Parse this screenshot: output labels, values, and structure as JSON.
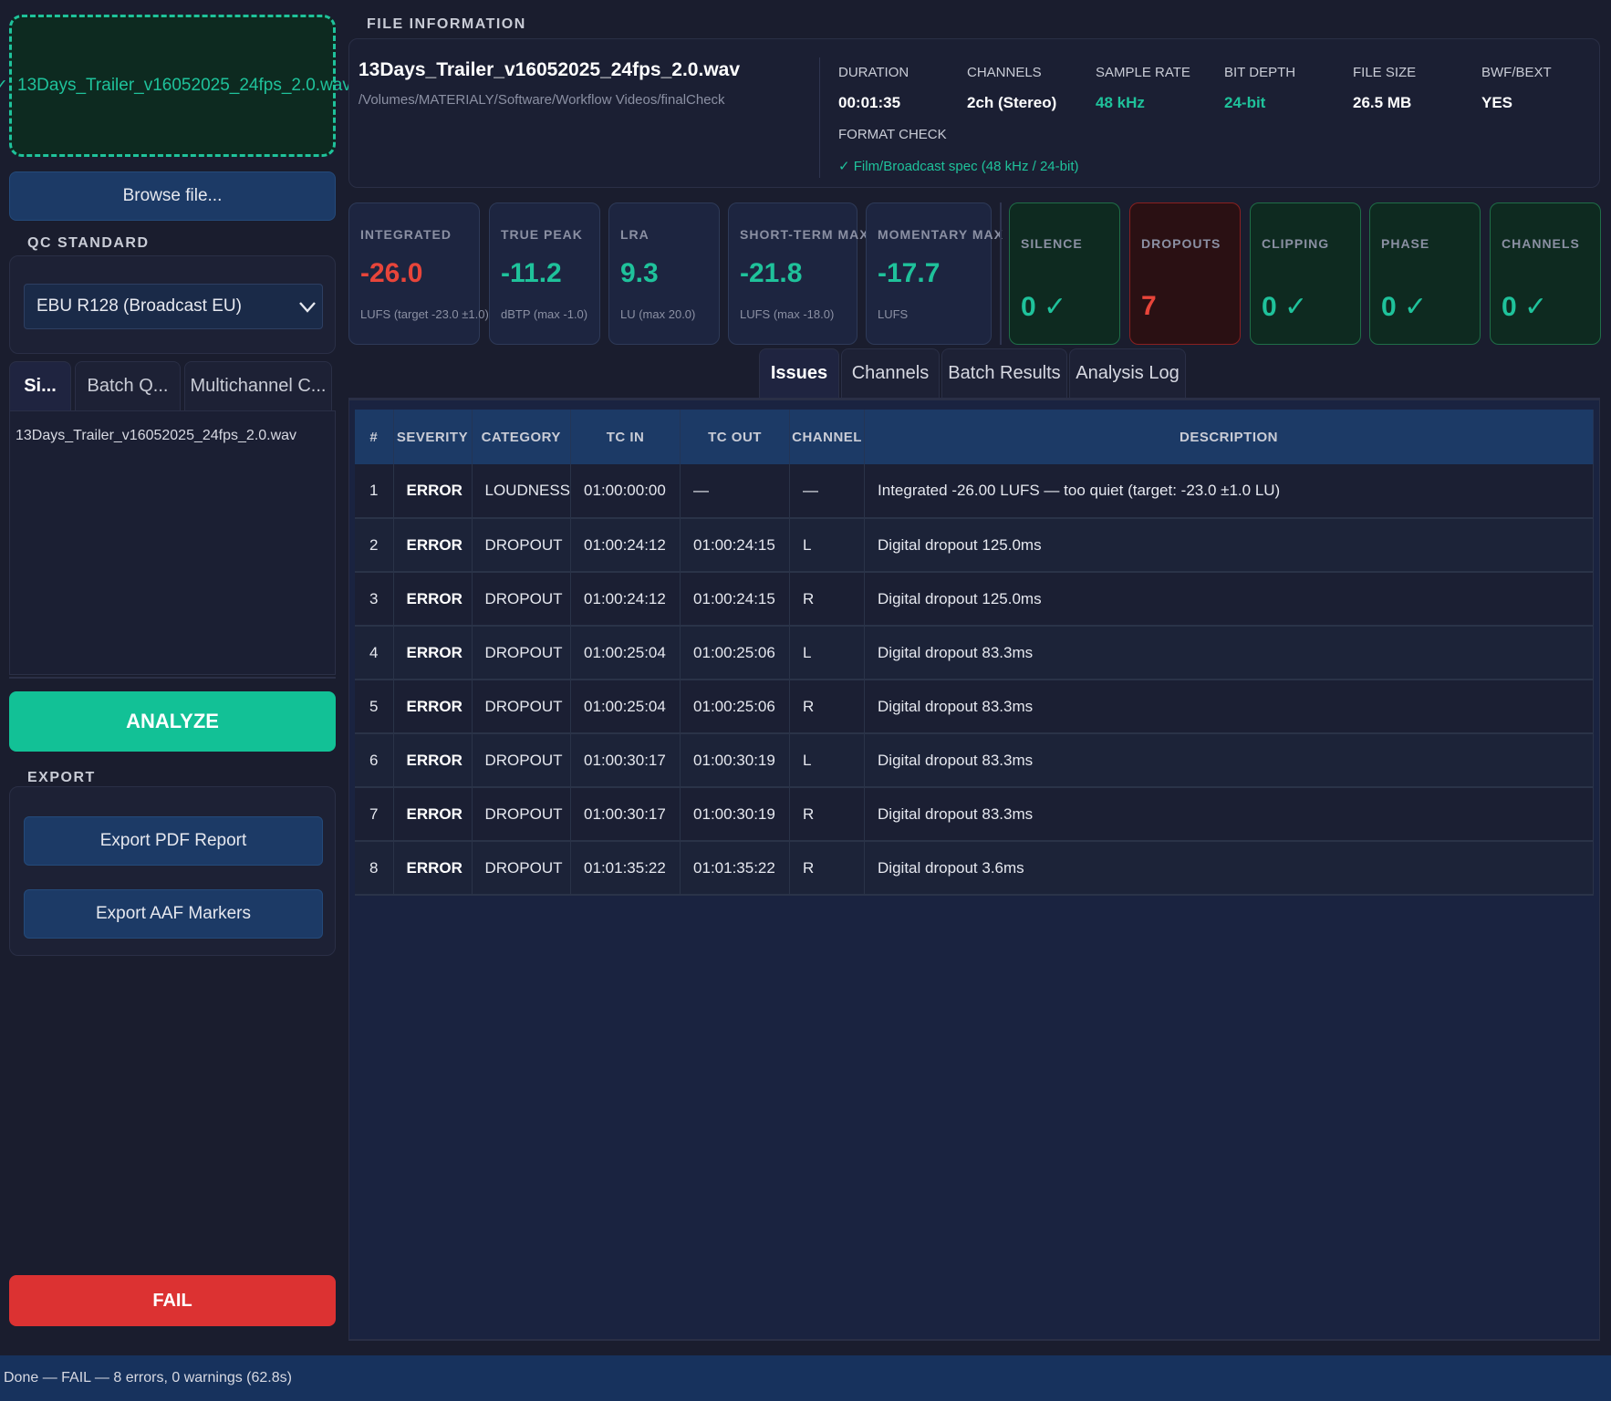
{
  "left": {
    "dropzone": {
      "check": "✓",
      "filename": "13Days_Trailer_v16052025_24fps_2.0.wav"
    },
    "browse_label": "Browse file...",
    "qc_standard_label": "QC STANDARD",
    "qc_standard_value": "EBU R128 (Broadcast EU)",
    "tabs": [
      "Si...",
      "Batch Q...",
      "Multichannel C..."
    ],
    "file_list": [
      "13Days_Trailer_v16052025_24fps_2.0.wav"
    ],
    "analyze_label": "ANALYZE",
    "export_label": "EXPORT",
    "export_pdf_label": "Export PDF Report",
    "export_aaf_label": "Export AAF Markers",
    "result_label": "FAIL"
  },
  "file_info": {
    "section_label": "FILE INFORMATION",
    "name": "13Days_Trailer_v16052025_24fps_2.0.wav",
    "path": "/Volumes/MATERIALY/Software/Workflow Videos/finalCheck",
    "duration_label": "DURATION",
    "duration": "00:01:35",
    "channels_label": "CHANNELS",
    "channels": "2ch  (Stereo)",
    "sample_rate_label": "SAMPLE RATE",
    "sample_rate": "48 kHz",
    "bit_depth_label": "BIT DEPTH",
    "bit_depth": "24-bit",
    "file_size_label": "FILE SIZE",
    "file_size": "26.5 MB",
    "bwf_label": "BWF/BEXT",
    "bwf": "YES",
    "format_check_label": "FORMAT CHECK",
    "format_check": "✓ Film/Broadcast spec (48 kHz / 24-bit)"
  },
  "metrics": [
    {
      "label": "INTEGRATED",
      "value": "-26.0",
      "sub": "LUFS  (target -23.0 ±1.0)",
      "color": "#e8453a"
    },
    {
      "label": "TRUE PEAK",
      "value": "-11.2",
      "sub": "dBTP  (max -1.0)",
      "color": "#1fc29b"
    },
    {
      "label": "LRA",
      "value": "9.3",
      "sub": "LU  (max 20.0)",
      "color": "#1fc29b"
    },
    {
      "label": "SHORT-TERM MAX",
      "value": "-21.8",
      "sub": "LUFS  (max -18.0)",
      "color": "#1fc29b"
    },
    {
      "label": "MOMENTARY MAX",
      "value": "-17.7",
      "sub": "LUFS",
      "color": "#1fc29b"
    }
  ],
  "checks": [
    {
      "label": "SILENCE",
      "value": "0 ✓",
      "state": "ok"
    },
    {
      "label": "DROPOUTS",
      "value": "7",
      "state": "bad"
    },
    {
      "label": "CLIPPING",
      "value": "0 ✓",
      "state": "ok"
    },
    {
      "label": "PHASE",
      "value": "0 ✓",
      "state": "ok"
    },
    {
      "label": "CHANNELS",
      "value": "0 ✓",
      "state": "ok"
    }
  ],
  "tabs": [
    "Issues",
    "Channels",
    "Batch Results",
    "Analysis Log"
  ],
  "table": {
    "headers": [
      "#",
      "SEVERITY",
      "CATEGORY",
      "TC IN",
      "TC OUT",
      "CHANNEL",
      "DESCRIPTION"
    ],
    "rows": [
      [
        "1",
        "ERROR",
        "LOUDNESS",
        "01:00:00:00",
        "—",
        "—",
        "Integrated -26.00 LUFS — too quiet (target: -23.0 ±1.0 LU)"
      ],
      [
        "2",
        "ERROR",
        "DROPOUT",
        "01:00:24:12",
        "01:00:24:15",
        "L",
        "Digital dropout 125.0ms"
      ],
      [
        "3",
        "ERROR",
        "DROPOUT",
        "01:00:24:12",
        "01:00:24:15",
        "R",
        "Digital dropout 125.0ms"
      ],
      [
        "4",
        "ERROR",
        "DROPOUT",
        "01:00:25:04",
        "01:00:25:06",
        "L",
        "Digital dropout 83.3ms"
      ],
      [
        "5",
        "ERROR",
        "DROPOUT",
        "01:00:25:04",
        "01:00:25:06",
        "R",
        "Digital dropout 83.3ms"
      ],
      [
        "6",
        "ERROR",
        "DROPOUT",
        "01:00:30:17",
        "01:00:30:19",
        "L",
        "Digital dropout 83.3ms"
      ],
      [
        "7",
        "ERROR",
        "DROPOUT",
        "01:00:30:17",
        "01:00:30:19",
        "R",
        "Digital dropout 83.3ms"
      ],
      [
        "8",
        "ERROR",
        "DROPOUT",
        "01:01:35:22",
        "01:01:35:22",
        "R",
        "Digital dropout 3.6ms"
      ]
    ]
  },
  "status_bar": "Done — FAIL — 8 errors, 0 warnings (62.8s)"
}
